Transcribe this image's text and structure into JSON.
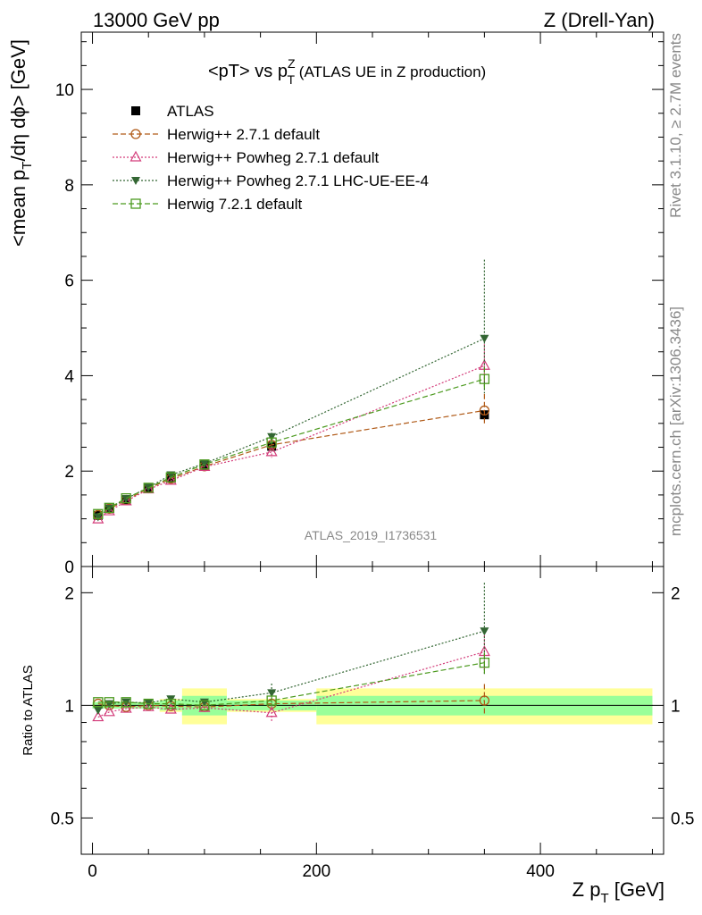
{
  "header": {
    "left": "13000 GeV pp",
    "right": "Z (Drell-Yan)"
  },
  "side_labels": {
    "rivet": "Rivet 3.1.10, ≥ 2.7M events",
    "mcplots": "mcplots.cern.ch [arXiv:1306.3436]"
  },
  "analysis_id": "ATLAS_2019_I1736531",
  "title": {
    "main": "<pT> vs p",
    "sup": "Z",
    "sub": "T",
    "tail": " (ATLAS UE in Z production)"
  },
  "axes": {
    "ylabel_top": "<mean p",
    "ylabel_top_sub": "T",
    "ylabel_top_tail": "/dη dϕ> [GeV]",
    "ylabel_ratio": "Ratio to ATLAS",
    "xlabel": "Z p",
    "xlabel_sub": "T",
    "xlabel_tail": " [GeV]"
  },
  "chart_data": {
    "type": "scatter",
    "x_range": [
      -10,
      510
    ],
    "top": {
      "ylim": [
        0,
        11.2
      ],
      "yticks": [
        0,
        2,
        4,
        6,
        8,
        10
      ],
      "yticklabels": [
        "0",
        "2",
        "4",
        "6",
        "8",
        "10"
      ]
    },
    "ratio": {
      "ylim": [
        0.4,
        2.35
      ],
      "log": true,
      "yticks": [
        0.5,
        1,
        2
      ],
      "yticklabels": [
        "0.5",
        "1",
        "2"
      ]
    },
    "xticks": [
      0,
      200,
      400
    ],
    "xticklabels": [
      "0",
      "200",
      "400"
    ],
    "bins": [
      [
        0,
        10
      ],
      [
        10,
        20
      ],
      [
        20,
        40
      ],
      [
        40,
        60
      ],
      [
        60,
        80
      ],
      [
        80,
        120
      ],
      [
        120,
        200
      ],
      [
        200,
        500
      ]
    ],
    "band_inner": [
      0.02,
      0.02,
      0.02,
      0.02,
      0.03,
      0.06,
      0.03,
      0.06
    ],
    "band_outer": [
      0.02,
      0.02,
      0.02,
      0.02,
      0.04,
      0.11,
      0.04,
      0.11
    ],
    "series": [
      {
        "name": "ATLAS",
        "color": "#000000",
        "marker": "square-filled",
        "line": "none",
        "x": [
          5,
          15,
          30,
          50,
          70,
          100,
          160,
          350
        ],
        "y": [
          1.07,
          1.21,
          1.4,
          1.64,
          1.85,
          2.12,
          2.52,
          3.18
        ],
        "ratio": [
          1,
          1,
          1,
          1,
          1,
          1,
          1,
          1
        ]
      },
      {
        "name": "Herwig++ 2.7.1 default",
        "color": "#b05a17",
        "marker": "circle-open",
        "line": "dashed",
        "x": [
          5,
          15,
          30,
          50,
          70,
          100,
          160,
          350
        ],
        "y": [
          1.08,
          1.21,
          1.39,
          1.64,
          1.84,
          2.1,
          2.55,
          3.27
        ],
        "ratio": [
          1.01,
          1.0,
          0.99,
          1.0,
          0.995,
          0.99,
          1.01,
          1.03
        ],
        "yerr_hi": [
          0,
          0,
          0,
          0,
          0,
          0,
          0,
          0.35
        ],
        "yerr_lo": [
          0,
          0,
          0,
          0,
          0,
          0,
          0,
          0.3
        ]
      },
      {
        "name": "Herwig++ Powheg 2.7.1 default",
        "color": "#d33c7a",
        "marker": "triangle-open",
        "line": "dotted",
        "x": [
          5,
          15,
          30,
          50,
          70,
          100,
          160,
          350
        ],
        "y": [
          0.99,
          1.16,
          1.37,
          1.62,
          1.8,
          2.09,
          2.4,
          4.21
        ],
        "ratio": [
          0.93,
          0.96,
          0.98,
          0.99,
          0.975,
          0.985,
          0.955,
          1.39
        ],
        "yerr_hi": [
          0,
          0,
          0,
          0,
          0,
          0,
          0.12,
          0.45
        ],
        "yerr_lo": [
          0,
          0,
          0,
          0,
          0,
          0,
          0.12,
          0.45
        ]
      },
      {
        "name": "Herwig++ Powheg 2.7.1 LHC-UE-EE-4",
        "color": "#336633",
        "marker": "triangle-down-filled",
        "line": "dotted",
        "x": [
          5,
          15,
          30,
          50,
          70,
          100,
          160,
          350
        ],
        "y": [
          1.04,
          1.22,
          1.42,
          1.66,
          1.92,
          2.16,
          2.72,
          4.78
        ],
        "ratio": [
          0.97,
          1.01,
          1.02,
          1.015,
          1.04,
          1.02,
          1.08,
          1.58
        ],
        "yerr_hi": [
          0,
          0,
          0,
          0,
          0,
          0,
          0.16,
          1.65
        ],
        "yerr_lo": [
          0,
          0,
          0,
          0,
          0,
          0,
          0.16,
          1.15
        ]
      },
      {
        "name": "Herwig 7.2.1 default",
        "color": "#4c9a1f",
        "marker": "square-open",
        "line": "dashed",
        "x": [
          5,
          15,
          30,
          50,
          70,
          100,
          160,
          350
        ],
        "y": [
          1.1,
          1.23,
          1.43,
          1.65,
          1.87,
          2.14,
          2.6,
          3.93
        ],
        "ratio": [
          1.02,
          1.02,
          1.02,
          1.01,
          1.01,
          1.0,
          1.03,
          1.3
        ],
        "yerr_hi": [
          0,
          0,
          0,
          0,
          0,
          0,
          0.08,
          0.25
        ],
        "yerr_lo": [
          0,
          0,
          0,
          0,
          0,
          0,
          0.08,
          0.25
        ]
      }
    ]
  }
}
